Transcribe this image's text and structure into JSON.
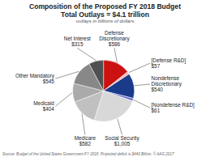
{
  "chart_data": {
    "type": "pie",
    "title": [
      "Composition of the Proposed FY 2018 Budget",
      "Total Outlays = $4.1 trillion"
    ],
    "subtitle": "outlays in billions of dollars",
    "source": "Source: Budget of the United States Government FY 2018.  Projected deficit is $440 Billion.  © AAG 2017",
    "categories": [
      "Defense\nDiscretionary\n$586",
      "[Defense R&D]\n$57",
      "Nondefense\nDiscretionary\n$540",
      "[Nondefense R&D]\n$61",
      "Social Security\n$1,005",
      "Medicare\n$582",
      "Medicaid\n$404",
      "Other Mandatory\n$545",
      "Net Interest\n$315"
    ],
    "values": [
      586,
      57,
      540,
      61,
      1005,
      582,
      404,
      545,
      315
    ],
    "colors": [
      "#cc1111",
      "#f2b5b5",
      "#1a3a8a",
      "#7070cc",
      "#d8d8d8",
      "#c0c0c0",
      "#aaaaaa",
      "#888888",
      "#505050"
    ]
  }
}
